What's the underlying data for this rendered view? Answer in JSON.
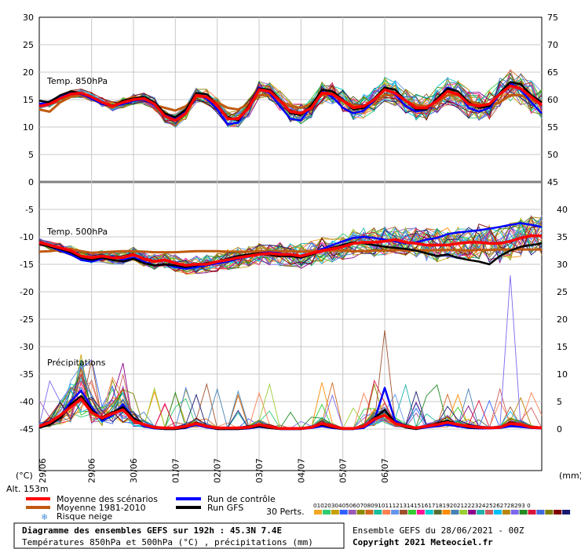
{
  "chart_data": {
    "type": "line",
    "panels": [
      {
        "label": "Temp. 850hPa",
        "left_ticks": [
          30,
          25,
          20,
          15,
          10,
          5,
          0
        ],
        "right_ticks": [
          75,
          70,
          65,
          60,
          55,
          50,
          45
        ]
      },
      {
        "label": "Temp. 500hPa",
        "left_ticks": [
          -5,
          -10,
          -15,
          -20,
          -25,
          -30,
          -35,
          -40,
          -45
        ]
      },
      {
        "label": "Précipitations",
        "right_ticks": [
          40,
          35,
          30,
          25,
          20,
          15,
          10,
          5,
          0
        ]
      }
    ],
    "x_dates": [
      "29/06",
      "30/06",
      "01/07",
      "02/07",
      "03/07",
      "04/07",
      "05/07",
      "06/07"
    ],
    "first_date_fragment": "29/06",
    "x_step_hours": 6,
    "series": [
      {
        "name": "Moyenne des scénarios",
        "color": "#ff0000",
        "t850": [
          13.8,
          14.2,
          15.2,
          16.0,
          16.2,
          15.5,
          14.5,
          13.8,
          14.5,
          15.0,
          15.2,
          14.2,
          12.0,
          11.2,
          12.5,
          15.8,
          15.5,
          14.0,
          11.5,
          11.5,
          13.5,
          16.8,
          16.5,
          14.8,
          12.8,
          12.5,
          13.5,
          16.2,
          16.0,
          14.8,
          13.5,
          13.8,
          15.0,
          16.8,
          16.2,
          14.8,
          13.5,
          13.5,
          14.8,
          16.5,
          16.0,
          14.2,
          13.8,
          14.2,
          16.0,
          17.5,
          17.0,
          15.5,
          14.0
        ],
        "t500": [
          -11.0,
          -11.5,
          -12.0,
          -12.5,
          -13.5,
          -13.8,
          -13.5,
          -13.8,
          -13.8,
          -13.2,
          -14.0,
          -14.5,
          -14.2,
          -14.8,
          -15.2,
          -15.0,
          -15.0,
          -14.5,
          -14.2,
          -13.8,
          -13.5,
          -13.2,
          -13.0,
          -13.2,
          -13.2,
          -13.5,
          -13.0,
          -12.5,
          -12.2,
          -11.8,
          -11.2,
          -11.0,
          -11.0,
          -10.8,
          -10.5,
          -11.0,
          -11.2,
          -11.5,
          -11.5,
          -11.5,
          -11.2,
          -11.0,
          -11.0,
          -11.2,
          -11.2,
          -10.8,
          -10.2,
          -9.8,
          -9.8
        ],
        "precip": [
          0.5,
          1.2,
          2.5,
          4.0,
          5.5,
          3.0,
          2.0,
          2.8,
          3.5,
          1.5,
          0.8,
          0.3,
          0.2,
          0.2,
          0.5,
          1.0,
          0.5,
          0.2,
          0.2,
          0.2,
          0.3,
          0.8,
          0.4,
          0.1,
          0.1,
          0.1,
          0.3,
          1.0,
          0.5,
          0.1,
          0.1,
          0.5,
          1.8,
          2.5,
          1.0,
          0.5,
          0.2,
          0.5,
          0.8,
          1.2,
          0.8,
          0.5,
          0.3,
          0.2,
          0.3,
          1.0,
          0.8,
          0.3,
          0.2
        ]
      },
      {
        "name": "Moyenne 1981-2010",
        "color": "#c05a10",
        "t850": [
          13.2,
          12.8,
          14.5,
          15.5,
          15.8,
          15.2,
          14.2,
          13.5,
          14.8,
          15.5,
          15.2,
          14.0,
          13.5,
          13.0,
          13.8,
          15.5,
          15.5,
          14.5,
          13.5,
          13.2,
          14.2,
          15.8,
          15.8,
          14.8,
          13.8,
          13.5,
          14.2,
          15.8,
          15.8,
          14.8,
          14.0,
          13.8,
          14.5,
          15.8,
          15.8,
          14.8,
          14.0,
          13.8,
          14.5,
          15.8,
          15.8,
          14.8,
          14.2,
          14.0,
          14.5,
          15.8,
          15.8,
          14.8,
          14.2
        ],
        "t500": [
          -12.7,
          -12.6,
          -12.4,
          -12.2,
          -12.6,
          -12.9,
          -12.8,
          -12.7,
          -12.6,
          -12.6,
          -12.7,
          -12.8,
          -12.8,
          -12.8,
          -12.7,
          -12.6,
          -12.6,
          -12.6,
          -12.7,
          -12.7,
          -12.7,
          -12.6,
          -12.6,
          -12.6,
          -12.6,
          -12.7,
          -12.6,
          -12.6,
          -12.5,
          -12.5,
          -12.6,
          -12.6,
          -12.5,
          -12.5,
          -12.4,
          -12.5,
          -12.5,
          -12.5,
          -12.4,
          -12.4,
          -12.4,
          -12.5,
          -12.4,
          -12.4,
          -12.3,
          -12.3,
          -12.3,
          -12.3,
          -12.3
        ]
      },
      {
        "name": "Run de contrôle",
        "color": "#0000ff",
        "t850": [
          14.2,
          14.5,
          15.5,
          16.2,
          16.0,
          15.2,
          14.2,
          13.8,
          14.2,
          14.8,
          15.0,
          14.0,
          12.2,
          11.5,
          12.8,
          16.0,
          15.2,
          13.2,
          10.5,
          10.8,
          13.8,
          17.2,
          16.2,
          13.8,
          11.5,
          11.2,
          13.8,
          16.5,
          15.5,
          13.5,
          12.5,
          13.0,
          14.8,
          17.0,
          16.0,
          13.8,
          12.8,
          13.2,
          15.0,
          17.2,
          16.5,
          13.5,
          12.8,
          13.5,
          16.0,
          18.0,
          16.8,
          14.5,
          12.5
        ],
        "t500": [
          -11.0,
          -11.8,
          -12.5,
          -13.2,
          -14.2,
          -14.5,
          -14.0,
          -13.5,
          -14.2,
          -13.8,
          -14.5,
          -15.2,
          -15.0,
          -15.5,
          -15.8,
          -15.5,
          -15.2,
          -14.8,
          -14.5,
          -14.0,
          -13.5,
          -13.0,
          -12.8,
          -13.0,
          -13.5,
          -13.8,
          -13.2,
          -12.2,
          -11.5,
          -10.8,
          -10.2,
          -10.0,
          -10.2,
          -10.5,
          -10.8,
          -11.2,
          -11.0,
          -10.5,
          -10.2,
          -9.5,
          -9.2,
          -9.0,
          -8.8,
          -8.5,
          -8.2,
          -7.8,
          -7.5,
          -7.8,
          -8.2
        ],
        "precip": [
          0.3,
          1.0,
          2.2,
          5.0,
          7.0,
          4.0,
          1.5,
          2.5,
          4.5,
          1.8,
          0.5,
          0.1,
          0.0,
          0.0,
          0.2,
          0.8,
          0.3,
          0.0,
          0.0,
          0.0,
          0.1,
          0.4,
          0.2,
          0.0,
          0.0,
          0.0,
          0.2,
          0.5,
          0.2,
          0.0,
          0.0,
          0.2,
          1.5,
          7.5,
          1.5,
          0.3,
          0.0,
          0.3,
          0.5,
          0.8,
          0.5,
          0.2,
          0.1,
          0.1,
          0.2,
          0.5,
          0.4,
          0.2,
          0.1
        ]
      },
      {
        "name": "Run GFS",
        "color": "#000000",
        "t850": [
          14.8,
          14.5,
          15.8,
          16.5,
          16.2,
          15.5,
          14.5,
          13.8,
          14.8,
          15.2,
          15.5,
          14.5,
          12.5,
          11.8,
          13.2,
          16.2,
          16.0,
          14.0,
          11.8,
          11.2,
          13.8,
          17.0,
          16.8,
          15.0,
          12.5,
          12.2,
          14.0,
          16.8,
          16.5,
          15.0,
          13.2,
          13.5,
          15.2,
          17.2,
          16.8,
          14.8,
          13.2,
          13.2,
          15.2,
          17.0,
          16.5,
          14.5,
          13.5,
          13.8,
          16.2,
          18.2,
          17.8,
          15.8,
          14.5
        ],
        "t500": [
          -11.2,
          -11.8,
          -12.2,
          -12.8,
          -13.8,
          -14.2,
          -13.8,
          -14.2,
          -14.5,
          -14.0,
          -14.8,
          -15.2,
          -15.0,
          -15.2,
          -15.5,
          -15.2,
          -14.8,
          -14.5,
          -14.0,
          -13.5,
          -13.2,
          -13.0,
          -13.2,
          -13.5,
          -13.5,
          -13.8,
          -13.2,
          -12.5,
          -12.0,
          -11.5,
          -11.0,
          -11.2,
          -11.5,
          -11.8,
          -12.0,
          -12.2,
          -12.5,
          -13.0,
          -13.5,
          -13.2,
          -13.8,
          -14.2,
          -14.5,
          -15.0,
          -13.5,
          -12.5,
          -11.8,
          -11.5,
          -11.2
        ],
        "precip": [
          0.2,
          0.8,
          2.0,
          4.5,
          6.0,
          3.5,
          1.8,
          3.0,
          4.0,
          2.0,
          0.8,
          0.2,
          0.0,
          0.0,
          0.3,
          1.2,
          0.5,
          0.0,
          0.0,
          0.0,
          0.2,
          0.5,
          0.2,
          0.0,
          0.0,
          0.0,
          0.3,
          0.8,
          0.3,
          0.0,
          0.0,
          0.5,
          2.0,
          3.5,
          1.0,
          0.3,
          0.0,
          0.5,
          1.0,
          1.5,
          0.8,
          0.3,
          0.2,
          0.2,
          0.3,
          1.2,
          0.8,
          0.3,
          0.2
        ]
      }
    ]
  },
  "legend": {
    "alt_label": "Alt. 153m",
    "items": [
      {
        "name": "Moyenne des scénarios",
        "color": "#ff0000"
      },
      {
        "name": "Moyenne 1981-2010",
        "color": "#c05a10"
      },
      {
        "name": "Risque neige",
        "icon": "snowflake-icon",
        "color": "#4a90d9"
      },
      {
        "name": "Run de contrôle",
        "color": "#0000ff"
      },
      {
        "name": "Run GFS",
        "color": "#000000"
      }
    ],
    "perts_label": "30 Perts.",
    "perts_numbers": "01020304050607080910111213141516171819202122232425262728293 0",
    "perts_colors": [
      "#f5a623",
      "#2ecc71",
      "#c8a000",
      "#3060ff",
      "#9b59b6",
      "#8a8a00",
      "#d2691e",
      "#1abc9c",
      "#ff7f50",
      "#6495ed",
      "#a0522d",
      "#32cd32",
      "#ff1493",
      "#00ced1",
      "#556b2f",
      "#ff8c00",
      "#4682b4",
      "#9acd32",
      "#8b008b",
      "#20b2aa",
      "#cd5c5c",
      "#00bfff",
      "#b8860b",
      "#7b68ee",
      "#228b22",
      "#dc143c",
      "#4169e1",
      "#808000",
      "#800000",
      "#191970"
    ],
    "unit_left": "(°C)",
    "unit_right": "(mm)"
  },
  "footer": {
    "title_line1": "Diagramme des ensembles GEFS sur 192h : 45.3N 7.4E",
    "title_line2": "Températures 850hPa et 500hPa (°C) , précipitations (mm)",
    "run_info": "Ensemble GEFS du 28/06/2021 - 00Z",
    "copyright": "Copyright 2021 Meteociel.fr"
  }
}
